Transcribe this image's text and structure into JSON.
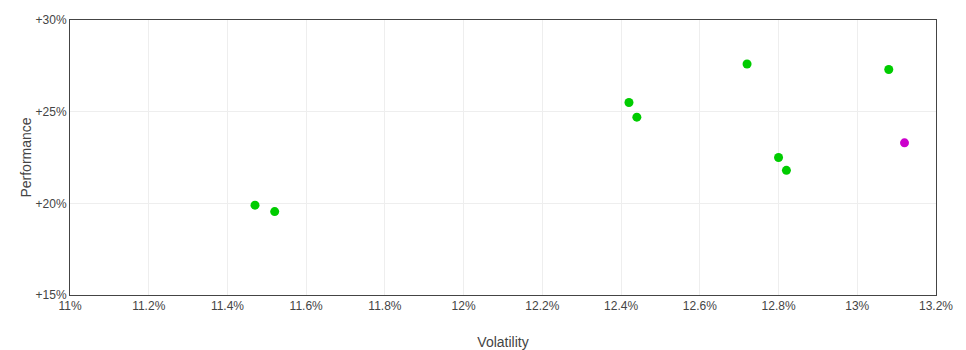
{
  "chart_data": {
    "type": "scatter",
    "x": [
      11.47,
      11.52,
      12.42,
      12.44,
      12.72,
      12.8,
      12.82,
      13.08,
      13.12
    ],
    "values": [
      19.9,
      19.55,
      25.5,
      24.7,
      27.6,
      22.5,
      21.8,
      27.3,
      23.3
    ],
    "colors": [
      "#00cc00",
      "#00cc00",
      "#00cc00",
      "#00cc00",
      "#00cc00",
      "#00cc00",
      "#00cc00",
      "#00cc00",
      "#cc00cc"
    ],
    "xlabel": "Volatility",
    "ylabel": "Performance",
    "xlim": [
      11.0,
      13.2
    ],
    "ylim": [
      15.0,
      30.0
    ],
    "xticks": [
      {
        "value": 11.0,
        "label": "11%"
      },
      {
        "value": 11.2,
        "label": "11.2%"
      },
      {
        "value": 11.4,
        "label": "11.4%"
      },
      {
        "value": 11.6,
        "label": "11.6%"
      },
      {
        "value": 11.8,
        "label": "11.8%"
      },
      {
        "value": 12.0,
        "label": "12%"
      },
      {
        "value": 12.2,
        "label": "12.2%"
      },
      {
        "value": 12.4,
        "label": "12.4%"
      },
      {
        "value": 12.6,
        "label": "12.6%"
      },
      {
        "value": 12.8,
        "label": "12.8%"
      },
      {
        "value": 13.0,
        "label": "13%"
      },
      {
        "value": 13.2,
        "label": "13.2%"
      }
    ],
    "yticks": [
      {
        "value": 15.0,
        "label": "+15%"
      },
      {
        "value": 20.0,
        "label": "+20%"
      },
      {
        "value": 25.0,
        "label": "+25%"
      },
      {
        "value": 30.0,
        "label": "+30%"
      }
    ],
    "grid": true
  }
}
